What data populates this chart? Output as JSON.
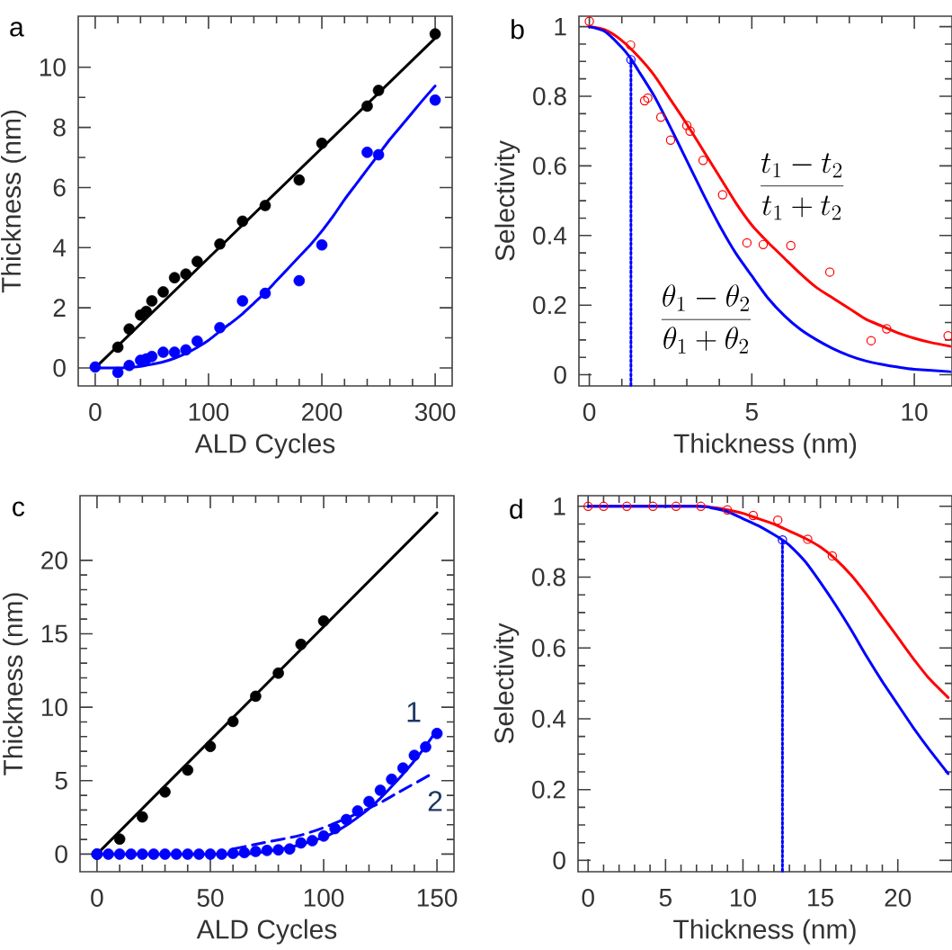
{
  "chart_data": [
    {
      "type": "line",
      "annotations": [
        "a"
      ],
      "xlabel": "ALD Cycles",
      "ylabel": "Thickness (nm)",
      "xlim": [
        -15,
        315
      ],
      "ylim": [
        -0.6,
        11.7
      ],
      "xticks": [
        0,
        100,
        200,
        300
      ],
      "yticks": [
        0,
        2,
        4,
        6,
        8,
        10
      ],
      "series": [
        {
          "color": "#000000",
          "marker": "none",
          "line_style": "solid",
          "x": [
            0,
            300
          ],
          "values": [
            0,
            10.97
          ]
        },
        {
          "color": "#0000ff",
          "marker": "none",
          "line_style": "solid",
          "x": [
            0,
            20,
            30,
            40,
            50,
            60,
            70,
            80,
            90,
            100,
            110,
            120,
            130,
            140,
            150,
            160,
            170,
            180,
            190,
            200,
            210,
            220,
            230,
            240,
            250,
            260,
            270,
            280,
            290,
            300
          ],
          "values": [
            0,
            0,
            0.02,
            0.05,
            0.12,
            0.2,
            0.32,
            0.48,
            0.68,
            0.92,
            1.22,
            1.5,
            1.8,
            2.15,
            2.5,
            2.9,
            3.3,
            3.7,
            4.1,
            4.55,
            5.05,
            5.6,
            6.1,
            6.6,
            7.1,
            7.6,
            8.05,
            8.5,
            8.95,
            9.38
          ]
        },
        {
          "type": "scatter",
          "color": "#000000",
          "marker": "circle",
          "x": [
            20,
            30,
            40,
            45,
            50,
            60,
            70,
            80,
            90,
            110,
            130,
            150,
            180,
            200,
            240,
            250,
            300
          ],
          "values": [
            0.69,
            1.29,
            1.76,
            1.88,
            2.23,
            2.53,
            3.0,
            3.12,
            3.54,
            4.12,
            4.88,
            5.4,
            6.25,
            7.47,
            8.71,
            9.23,
            11.11
          ]
        },
        {
          "type": "scatter",
          "color": "#0000ff",
          "marker": "circle",
          "x": [
            0,
            20,
            30,
            40,
            45,
            50,
            60,
            70,
            80,
            90,
            110,
            130,
            150,
            180,
            200,
            240,
            250,
            300
          ],
          "values": [
            0.03,
            -0.15,
            0.08,
            0.25,
            0.3,
            0.38,
            0.52,
            0.52,
            0.6,
            0.89,
            1.34,
            2.23,
            2.48,
            2.9,
            4.09,
            7.17,
            7.09,
            8.91
          ]
        }
      ]
    },
    {
      "type": "line",
      "annotations": [
        "b",
        "\\frac{t_1 - t_2}{t_1 + t_2}",
        "\\frac{\\theta_1 - \\theta_2}{\\theta_1 + \\theta_2}"
      ],
      "xlabel": "Thickness (nm)",
      "ylabel": "Selectivity",
      "xlim": [
        -0.32,
        11.16
      ],
      "ylim": [
        -0.032,
        1.03
      ],
      "xticks": [
        0,
        5,
        10
      ],
      "yticks": [
        0,
        0.2,
        0.4,
        0.6,
        0.8,
        1
      ],
      "series": [
        {
          "color": "#ff0000",
          "marker": "none",
          "line_style": "solid",
          "x": [
            0,
            0.5,
            1,
            1.5,
            2,
            2.5,
            3,
            3.5,
            4,
            4.5,
            5,
            5.5,
            6,
            6.5,
            7,
            7.5,
            8,
            8.5,
            9,
            9.5,
            10,
            10.5,
            11.1
          ],
          "values": [
            1,
            0.99,
            0.96,
            0.915,
            0.86,
            0.79,
            0.72,
            0.645,
            0.57,
            0.495,
            0.43,
            0.38,
            0.335,
            0.29,
            0.25,
            0.22,
            0.19,
            0.16,
            0.14,
            0.12,
            0.105,
            0.093,
            0.082
          ]
        },
        {
          "color": "#0000ff",
          "marker": "none",
          "line_style": "solid",
          "x": [
            0,
            0.5,
            1,
            1.3,
            1.5,
            2,
            2.5,
            3,
            3.5,
            4,
            4.5,
            5,
            5.5,
            6,
            6.5,
            7,
            7.5,
            8,
            8.5,
            9,
            9.5,
            10,
            11.1
          ],
          "values": [
            1,
            0.985,
            0.94,
            0.905,
            0.875,
            0.8,
            0.71,
            0.615,
            0.52,
            0.43,
            0.35,
            0.284,
            0.22,
            0.17,
            0.13,
            0.1,
            0.075,
            0.055,
            0.04,
            0.03,
            0.022,
            0.016,
            0.009
          ]
        },
        {
          "color": "#0000ff",
          "marker": "none",
          "line_style": "dotted",
          "x": [
            1.28,
            1.28
          ],
          "values": [
            -0.03,
            0.905
          ]
        },
        {
          "type": "scatter",
          "color": "#ff0000",
          "marker": "circle",
          "x": [
            0,
            1.27,
            1.7,
            1.8,
            2.2,
            2.5,
            3.0,
            3.1,
            3.5,
            4.1,
            4.85,
            5.35,
            6.2,
            7.4,
            8.67,
            9.15,
            11.04
          ],
          "values": [
            1.015,
            0.947,
            0.787,
            0.795,
            0.74,
            0.674,
            0.716,
            0.7,
            0.616,
            0.517,
            0.379,
            0.374,
            0.371,
            0.295,
            0.098,
            0.132,
            0.112
          ]
        },
        {
          "type": "scatter",
          "color": "#0000ff",
          "marker": "circle",
          "x": [
            1.28
          ],
          "values": [
            0.905
          ]
        }
      ]
    },
    {
      "type": "line",
      "annotations": [
        "c"
      ],
      "xlabel": "ALD Cycles",
      "ylabel": "Thickness (nm)",
      "xlim": [
        -7.5,
        157.5
      ],
      "ylim": [
        -1.2,
        24.4
      ],
      "xticks": [
        0,
        50,
        100,
        150
      ],
      "yticks": [
        0,
        5,
        10,
        15,
        20
      ],
      "series": [
        {
          "color": "#000000",
          "marker": "none",
          "line_style": "solid",
          "x": [
            0,
            150
          ],
          "values": [
            0,
            23.23
          ]
        },
        {
          "name": "1",
          "color": "#0000ff",
          "marker": "none",
          "line_style": "solid",
          "x": [
            0,
            60,
            70,
            80,
            90,
            100,
            105,
            110,
            115,
            120,
            125,
            130,
            135,
            140,
            145,
            150
          ],
          "values": [
            0,
            0,
            0.08,
            0.3,
            0.65,
            1.15,
            1.5,
            1.95,
            2.5,
            3.1,
            3.8,
            4.6,
            5.45,
            6.35,
            7.35,
            8.45
          ]
        },
        {
          "name": "2",
          "color": "#0000ff",
          "marker": "none",
          "line_style": "dashed",
          "x": [
            60,
            73,
            89.5,
            103,
            122.5,
            133,
            147.6
          ],
          "values": [
            0.35,
            0.76,
            1.27,
            1.98,
            3.3,
            4.2,
            5.45
          ]
        },
        {
          "type": "scatter",
          "color": "#000000",
          "marker": "circle",
          "x": [
            0,
            10,
            20,
            30,
            40,
            50,
            60,
            70,
            80,
            90,
            100
          ],
          "values": [
            0,
            1.02,
            2.53,
            4.23,
            5.72,
            7.33,
            9.03,
            10.75,
            12.32,
            14.28,
            15.87
          ]
        },
        {
          "type": "scatter",
          "color": "#0000ff",
          "marker": "circle",
          "x": [
            0,
            5,
            10,
            15,
            20,
            25,
            30,
            35,
            40,
            45,
            50,
            55,
            60,
            65,
            70,
            75,
            80,
            85,
            90,
            95,
            100,
            105,
            110,
            115,
            120,
            125,
            130,
            135,
            140,
            145,
            150
          ],
          "values": [
            0,
            0,
            0,
            0,
            0,
            0,
            0,
            0,
            0,
            0,
            0,
            0,
            0.05,
            0.1,
            0.18,
            0.25,
            0.29,
            0.35,
            0.76,
            0.92,
            1.23,
            1.74,
            2.35,
            2.94,
            3.58,
            4.35,
            5.1,
            5.86,
            6.72,
            7.29,
            8.21
          ]
        }
      ]
    },
    {
      "type": "line",
      "annotations": [
        "d"
      ],
      "xlabel": "Thickness (nm)",
      "ylabel": "Selectivity",
      "xlim": [
        -0.65,
        23.5
      ],
      "ylim": [
        -0.032,
        1.03
      ],
      "xticks": [
        0,
        5,
        10,
        15,
        20
      ],
      "yticks": [
        0,
        0.2,
        0.4,
        0.6,
        0.8,
        1
      ],
      "series": [
        {
          "color": "#ff0000",
          "marker": "none",
          "line_style": "solid",
          "x": [
            0,
            7,
            8,
            9,
            10,
            11,
            12,
            13,
            14,
            15,
            16,
            17,
            18,
            19,
            20,
            21,
            22,
            23.25
          ],
          "values": [
            1,
            1,
            0.997,
            0.99,
            0.98,
            0.965,
            0.95,
            0.93,
            0.91,
            0.885,
            0.85,
            0.805,
            0.75,
            0.69,
            0.63,
            0.57,
            0.515,
            0.46
          ]
        },
        {
          "color": "#0000ff",
          "marker": "none",
          "line_style": "solid",
          "x": [
            0,
            7,
            8,
            9,
            10,
            11,
            12,
            12.55,
            13,
            14,
            15,
            16,
            17,
            18,
            19,
            20,
            21,
            22,
            23.25
          ],
          "values": [
            1,
            1,
            0.995,
            0.985,
            0.965,
            0.945,
            0.92,
            0.905,
            0.89,
            0.845,
            0.785,
            0.72,
            0.65,
            0.575,
            0.505,
            0.44,
            0.375,
            0.315,
            0.245
          ]
        },
        {
          "color": "#0000ff",
          "marker": "none",
          "line_style": "dotted",
          "x": [
            12.55,
            12.55
          ],
          "values": [
            -0.03,
            0.905
          ]
        },
        {
          "type": "scatter",
          "color": "#ff0000",
          "marker": "circle",
          "x": [
            0,
            1.0,
            2.5,
            4.19,
            5.68,
            7.28,
            8.99,
            10.66,
            12.25,
            14.18,
            15.77
          ],
          "values": [
            1.0,
            1.0,
            1.0,
            1.0,
            1.0,
            1.0,
            0.99,
            0.974,
            0.961,
            0.907,
            0.86
          ]
        },
        {
          "type": "scatter",
          "color": "#0000ff",
          "marker": "circle",
          "x": [
            12.55
          ],
          "values": [
            0.905
          ]
        }
      ]
    }
  ]
}
